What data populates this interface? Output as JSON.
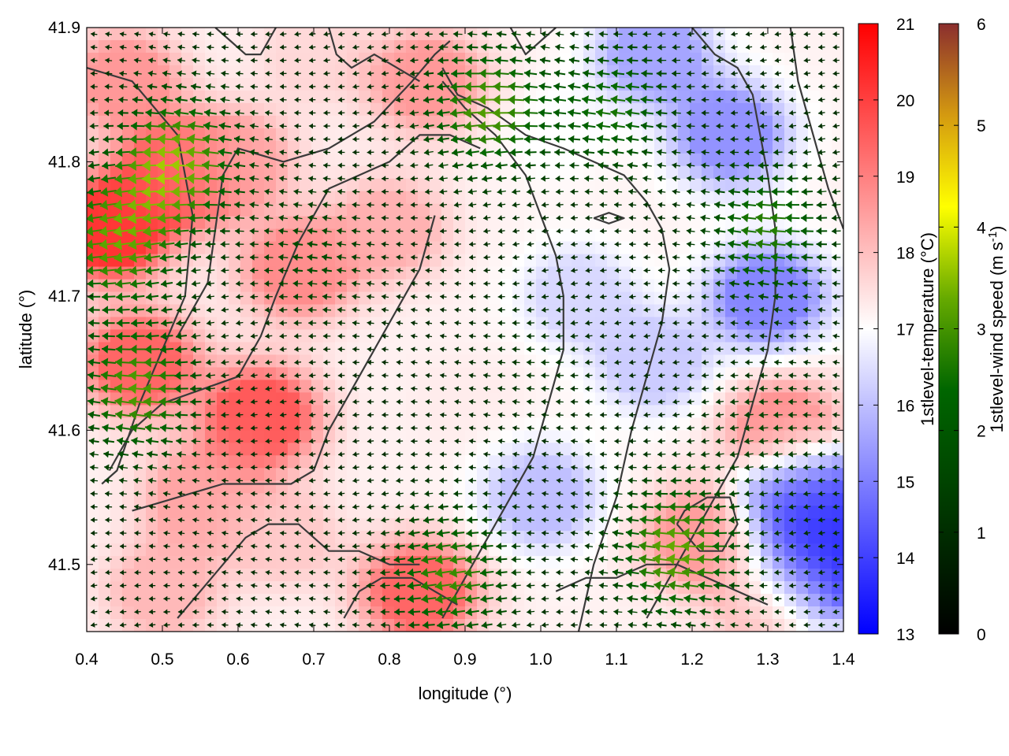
{
  "chart_data": {
    "type": "heatmap",
    "title": "",
    "xlabel": "longitude (°)",
    "ylabel": "latitude (°)",
    "xlim": [
      0.4,
      1.4
    ],
    "ylim": [
      41.45,
      41.9
    ],
    "x_ticks": [
      "0.4",
      "0.5",
      "0.6",
      "0.7",
      "0.8",
      "0.9",
      "1.0",
      "1.1",
      "1.2",
      "1.3",
      "1.4"
    ],
    "y_ticks": [
      "41.5",
      "41.6",
      "41.7",
      "41.8",
      "41.9"
    ],
    "grid": false,
    "temperature_colorbar": {
      "label": "1stlevel-temperature (°C)",
      "range": [
        13,
        21
      ],
      "ticks": [
        "13",
        "14",
        "15",
        "16",
        "17",
        "18",
        "19",
        "20",
        "21"
      ],
      "colors": [
        "#0000ff",
        "#ffffff",
        "#ff0000"
      ]
    },
    "wind_colorbar": {
      "label": "1stlevel-wind speed (m s",
      "label_sup": "-1",
      "label_end": ")",
      "range": [
        0,
        6
      ],
      "ticks": [
        "0",
        "1",
        "2",
        "3",
        "4",
        "5",
        "6"
      ],
      "colors": [
        "#000000",
        "#005a00",
        "#6aaa00",
        "#ffff00",
        "#d4a000",
        "#8b2e2e"
      ]
    },
    "temperature_regions": [
      {
        "lon": 0.43,
        "lat": 41.75,
        "temp": 20.2
      },
      {
        "lon": 0.52,
        "lat": 41.79,
        "temp": 19.6
      },
      {
        "lon": 0.47,
        "lat": 41.65,
        "temp": 19.4
      },
      {
        "lon": 0.45,
        "lat": 41.86,
        "temp": 18.6
      },
      {
        "lon": 0.68,
        "lat": 41.72,
        "temp": 18.8
      },
      {
        "lon": 0.63,
        "lat": 41.61,
        "temp": 19.6
      },
      {
        "lon": 0.6,
        "lat": 41.8,
        "temp": 18.3
      },
      {
        "lon": 0.85,
        "lat": 41.86,
        "temp": 18.6
      },
      {
        "lon": 0.8,
        "lat": 41.75,
        "temp": 18.2
      },
      {
        "lon": 0.55,
        "lat": 41.55,
        "temp": 18.4
      },
      {
        "lon": 0.5,
        "lat": 41.48,
        "temp": 18.1
      },
      {
        "lon": 0.84,
        "lat": 41.48,
        "temp": 19.4
      },
      {
        "lon": 0.9,
        "lat": 41.62,
        "temp": 17.3
      },
      {
        "lon": 1.0,
        "lat": 41.55,
        "temp": 16.0
      },
      {
        "lon": 1.05,
        "lat": 41.7,
        "temp": 16.4
      },
      {
        "lon": 1.02,
        "lat": 41.82,
        "temp": 17.0
      },
      {
        "lon": 1.15,
        "lat": 41.88,
        "temp": 15.6
      },
      {
        "lon": 1.25,
        "lat": 41.82,
        "temp": 15.3
      },
      {
        "lon": 1.3,
        "lat": 41.7,
        "temp": 15.1
      },
      {
        "lon": 1.35,
        "lat": 41.55,
        "temp": 14.0
      },
      {
        "lon": 1.37,
        "lat": 41.5,
        "temp": 13.6
      },
      {
        "lon": 1.21,
        "lat": 41.52,
        "temp": 18.6
      },
      {
        "lon": 1.32,
        "lat": 41.6,
        "temp": 18.8
      },
      {
        "lon": 1.3,
        "lat": 41.47,
        "temp": 18.0
      },
      {
        "lon": 1.15,
        "lat": 41.65,
        "temp": 16.2
      },
      {
        "lon": 0.7,
        "lat": 41.88,
        "temp": 17.6
      },
      {
        "lon": 0.66,
        "lat": 41.52,
        "temp": 17.8
      }
    ],
    "wind_field": {
      "direction": "westward",
      "speed_regions": [
        {
          "lon": 0.44,
          "lat": 41.74,
          "speed": 3.0
        },
        {
          "lon": 0.52,
          "lat": 41.8,
          "speed": 3.4
        },
        {
          "lon": 0.47,
          "lat": 41.63,
          "speed": 3.0
        },
        {
          "lon": 0.93,
          "lat": 41.84,
          "speed": 3.0
        },
        {
          "lon": 1.18,
          "lat": 41.51,
          "speed": 3.2
        },
        {
          "lon": 0.88,
          "lat": 41.49,
          "speed": 2.8
        },
        {
          "lon": 0.7,
          "lat": 41.73,
          "speed": 1.6
        },
        {
          "lon": 1.0,
          "lat": 41.65,
          "speed": 1.2
        },
        {
          "lon": 1.3,
          "lat": 41.6,
          "speed": 1.4
        },
        {
          "lon": 1.3,
          "lat": 41.75,
          "speed": 2.6
        },
        {
          "lon": 1.1,
          "lat": 41.84,
          "speed": 2.4
        }
      ]
    },
    "contours": [
      [
        [
          0.4,
          41.87
        ],
        [
          0.46,
          41.86
        ],
        [
          0.52,
          41.82
        ],
        [
          0.54,
          41.76
        ],
        [
          0.53,
          41.7
        ],
        [
          0.5,
          41.66
        ],
        [
          0.47,
          41.62
        ],
        [
          0.44,
          41.57
        ],
        [
          0.42,
          41.56
        ]
      ],
      [
        [
          0.52,
          41.67
        ],
        [
          0.56,
          41.71
        ],
        [
          0.57,
          41.75
        ],
        [
          0.58,
          41.79
        ],
        [
          0.6,
          41.81
        ],
        [
          0.66,
          41.8
        ],
        [
          0.72,
          41.81
        ],
        [
          0.78,
          41.83
        ],
        [
          0.83,
          41.86
        ],
        [
          0.86,
          41.88
        ],
        [
          0.88,
          41.89
        ]
      ],
      [
        [
          0.57,
          41.9
        ],
        [
          0.59,
          41.89
        ],
        [
          0.61,
          41.88
        ],
        [
          0.63,
          41.88
        ],
        [
          0.65,
          41.9
        ]
      ],
      [
        [
          0.72,
          41.9
        ],
        [
          0.73,
          41.88
        ],
        [
          0.75,
          41.87
        ],
        [
          0.78,
          41.88
        ],
        [
          0.81,
          41.87
        ],
        [
          0.84,
          41.86
        ]
      ],
      [
        [
          0.87,
          41.87
        ],
        [
          0.89,
          41.85
        ],
        [
          0.93,
          41.84
        ],
        [
          0.98,
          41.82
        ],
        [
          1.03,
          41.81
        ],
        [
          1.07,
          41.8
        ],
        [
          1.11,
          41.79
        ],
        [
          1.14,
          41.77
        ],
        [
          1.16,
          41.75
        ],
        [
          1.17,
          41.72
        ],
        [
          1.16,
          41.68
        ],
        [
          1.14,
          41.64
        ],
        [
          1.12,
          41.6
        ],
        [
          1.1,
          41.55
        ],
        [
          1.07,
          41.5
        ],
        [
          1.05,
          41.45
        ]
      ],
      [
        [
          0.96,
          41.9
        ],
        [
          0.98,
          41.88
        ],
        [
          1.0,
          41.89
        ],
        [
          1.02,
          41.9
        ]
      ],
      [
        [
          0.92,
          41.81
        ],
        [
          0.88,
          41.82
        ],
        [
          0.84,
          41.82
        ],
        [
          0.8,
          41.8
        ],
        [
          0.76,
          41.79
        ],
        [
          0.72,
          41.78
        ],
        [
          0.68,
          41.74
        ],
        [
          0.65,
          41.7
        ],
        [
          0.63,
          41.67
        ],
        [
          0.6,
          41.64
        ],
        [
          0.55,
          41.63
        ],
        [
          0.5,
          41.62
        ],
        [
          0.46,
          41.6
        ],
        [
          0.43,
          41.57
        ]
      ],
      [
        [
          0.46,
          41.54
        ],
        [
          0.52,
          41.55
        ],
        [
          0.58,
          41.56
        ],
        [
          0.63,
          41.56
        ],
        [
          0.67,
          41.56
        ],
        [
          0.7,
          41.57
        ],
        [
          0.72,
          41.6
        ],
        [
          0.75,
          41.63
        ],
        [
          0.78,
          41.66
        ],
        [
          0.8,
          41.68
        ],
        [
          0.82,
          41.7
        ],
        [
          0.84,
          41.72
        ],
        [
          0.85,
          41.74
        ],
        [
          0.86,
          41.76
        ]
      ],
      [
        [
          0.52,
          41.46
        ],
        [
          0.55,
          41.48
        ],
        [
          0.58,
          41.5
        ],
        [
          0.61,
          41.52
        ],
        [
          0.64,
          41.53
        ],
        [
          0.68,
          41.53
        ],
        [
          0.72,
          41.51
        ],
        [
          0.76,
          41.51
        ],
        [
          0.8,
          41.5
        ],
        [
          0.84,
          41.5
        ]
      ],
      [
        [
          0.74,
          41.46
        ],
        [
          0.76,
          41.48
        ],
        [
          0.79,
          41.49
        ],
        [
          0.83,
          41.49
        ],
        [
          0.86,
          41.48
        ],
        [
          0.89,
          41.47
        ]
      ],
      [
        [
          0.87,
          41.86
        ],
        [
          0.9,
          41.84
        ],
        [
          0.94,
          41.82
        ],
        [
          0.98,
          41.79
        ],
        [
          1.0,
          41.76
        ],
        [
          1.02,
          41.73
        ],
        [
          1.03,
          41.7
        ],
        [
          1.03,
          41.66
        ],
        [
          1.01,
          41.62
        ],
        [
          0.99,
          41.58
        ],
        [
          0.96,
          41.55
        ],
        [
          0.93,
          41.52
        ],
        [
          0.9,
          41.49
        ],
        [
          0.87,
          41.46
        ]
      ],
      [
        [
          1.2,
          41.9
        ],
        [
          1.23,
          41.88
        ],
        [
          1.26,
          41.87
        ],
        [
          1.28,
          41.85
        ],
        [
          1.29,
          41.82
        ],
        [
          1.3,
          41.79
        ],
        [
          1.31,
          41.75
        ],
        [
          1.31,
          41.7
        ],
        [
          1.3,
          41.66
        ],
        [
          1.28,
          41.62
        ],
        [
          1.26,
          41.58
        ],
        [
          1.23,
          41.55
        ],
        [
          1.2,
          41.52
        ],
        [
          1.17,
          41.49
        ],
        [
          1.14,
          41.46
        ]
      ],
      [
        [
          1.33,
          41.9
        ],
        [
          1.34,
          41.86
        ],
        [
          1.36,
          41.82
        ],
        [
          1.38,
          41.78
        ],
        [
          1.4,
          41.75
        ]
      ],
      [
        [
          1.18,
          41.53
        ],
        [
          1.21,
          41.51
        ],
        [
          1.24,
          41.51
        ],
        [
          1.26,
          41.53
        ],
        [
          1.25,
          41.55
        ],
        [
          1.22,
          41.55
        ],
        [
          1.19,
          41.54
        ],
        [
          1.18,
          41.53
        ]
      ],
      [
        [
          1.02,
          41.48
        ],
        [
          1.06,
          41.49
        ],
        [
          1.1,
          41.49
        ],
        [
          1.14,
          41.5
        ],
        [
          1.18,
          41.5
        ],
        [
          1.22,
          41.49
        ],
        [
          1.26,
          41.48
        ],
        [
          1.3,
          41.47
        ]
      ],
      [
        [
          1.07,
          41.758
        ],
        [
          1.09,
          41.762
        ],
        [
          1.11,
          41.758
        ],
        [
          1.09,
          41.754
        ],
        [
          1.07,
          41.758
        ]
      ]
    ]
  }
}
